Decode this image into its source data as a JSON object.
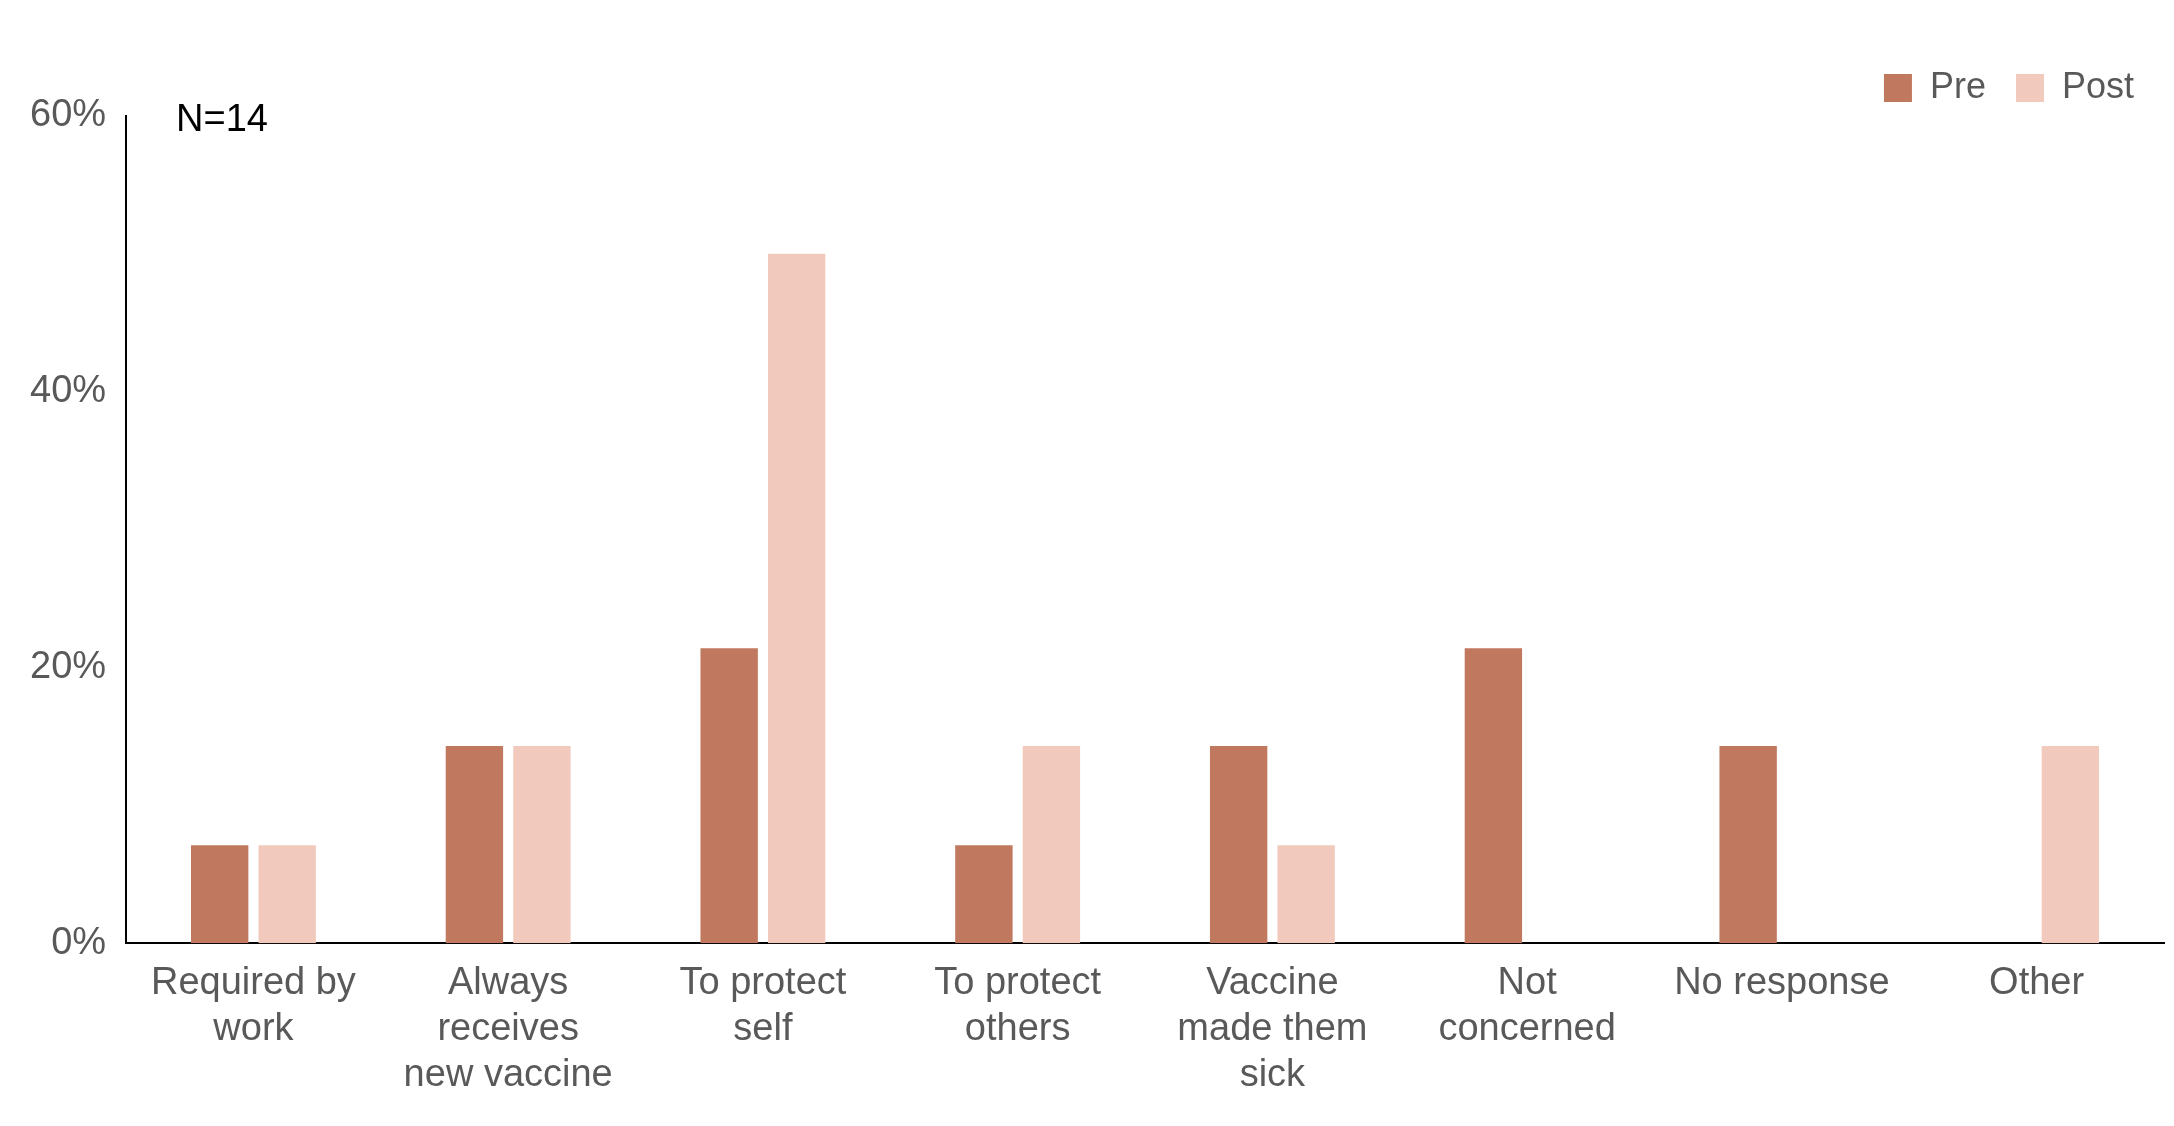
{
  "chart_data": {
    "type": "bar",
    "categories": [
      "Required by work",
      "Always receives new vaccine",
      "To protect self",
      "To protect others",
      "Vaccine made them sick",
      "Not concerned",
      "No response",
      "Other"
    ],
    "series": [
      {
        "name": "Pre",
        "color": "#c0785e",
        "values": [
          7.1,
          14.3,
          21.4,
          7.1,
          14.3,
          21.4,
          14.3,
          0
        ]
      },
      {
        "name": "Post",
        "color": "#f2cabd",
        "values": [
          7.1,
          14.3,
          50,
          14.3,
          7.1,
          0,
          0,
          14.3
        ]
      }
    ],
    "ylim": [
      0,
      60
    ],
    "yticks": [
      {
        "value": 0,
        "label": "0%"
      },
      {
        "value": 20,
        "label": "20%"
      },
      {
        "value": 40,
        "label": "40%"
      },
      {
        "value": 60,
        "label": "60%"
      }
    ],
    "grid": false,
    "legend": "top right",
    "annotations": [
      "N=14"
    ]
  }
}
